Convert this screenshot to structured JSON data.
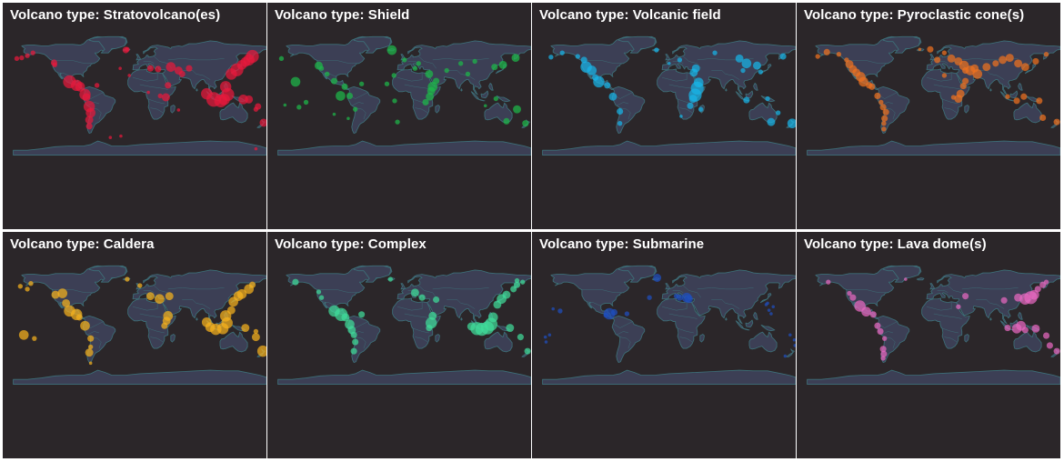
{
  "title_prefix": "Volcano type:",
  "panels": [
    {
      "type": "Stratovolcano(es)",
      "color": "#e8193c",
      "markers": [
        [
          -122,
          46,
          4
        ],
        [
          -121,
          43,
          3
        ],
        [
          -152,
          60,
          3
        ],
        [
          -160,
          56,
          3
        ],
        [
          -175,
          52,
          3
        ],
        [
          -168,
          53,
          3
        ],
        [
          -100,
          19,
          8
        ],
        [
          -90,
          14,
          7
        ],
        [
          -85,
          12,
          6
        ],
        [
          -78,
          1,
          7
        ],
        [
          -76,
          -3,
          5
        ],
        [
          -72,
          -16,
          7
        ],
        [
          -70,
          -25,
          6
        ],
        [
          -72,
          -35,
          5
        ],
        [
          -72,
          -44,
          4
        ],
        [
          -61,
          14,
          3
        ],
        [
          -20,
          64,
          4
        ],
        [
          -18,
          65,
          3
        ],
        [
          15,
          38,
          4
        ],
        [
          26,
          37,
          4
        ],
        [
          37,
          -3,
          5
        ],
        [
          40,
          14,
          4
        ],
        [
          29,
          -1,
          3
        ],
        [
          44,
          40,
          6
        ],
        [
          55,
          35,
          5
        ],
        [
          60,
          30,
          4
        ],
        [
          70,
          38,
          4
        ],
        [
          95,
          2,
          7
        ],
        [
          105,
          -6,
          9
        ],
        [
          115,
          -8,
          8
        ],
        [
          120,
          -6,
          7
        ],
        [
          125,
          1,
          8
        ],
        [
          122,
          12,
          7
        ],
        [
          130,
          30,
          7
        ],
        [
          138,
          36,
          8
        ],
        [
          145,
          43,
          6
        ],
        [
          155,
          50,
          7
        ],
        [
          160,
          55,
          8
        ],
        [
          150,
          47,
          6
        ],
        [
          147,
          -6,
          6
        ],
        [
          155,
          -6,
          5
        ],
        [
          168,
          -16,
          4
        ],
        [
          176,
          -39,
          5
        ],
        [
          165,
          -20,
          3
        ],
        [
          -28,
          38,
          2
        ],
        [
          -15,
          28,
          2
        ],
        [
          12,
          4,
          2
        ],
        [
          -42,
          -60,
          2
        ],
        [
          -27,
          -58,
          2
        ],
        [
          165,
          -76,
          2
        ],
        [
          55,
          -21,
          2
        ]
      ]
    },
    {
      "type": "Shield",
      "color": "#1db84a",
      "markers": [
        [
          -155,
          19,
          6
        ],
        [
          -122,
          42,
          5
        ],
        [
          -118,
          38,
          3
        ],
        [
          -91,
          -1,
          6
        ],
        [
          -110,
          30,
          3
        ],
        [
          -100,
          20,
          4
        ],
        [
          -85,
          12,
          4
        ],
        [
          -78,
          -1,
          4
        ],
        [
          -70,
          -20,
          3
        ],
        [
          -18,
          64,
          6
        ],
        [
          -15,
          28,
          3
        ],
        [
          0,
          50,
          3
        ],
        [
          -25,
          16,
          3
        ],
        [
          -14,
          -8,
          3
        ],
        [
          -10,
          -38,
          3
        ],
        [
          -61,
          16,
          3
        ],
        [
          15,
          38,
          3
        ],
        [
          20,
          45,
          3
        ],
        [
          35,
          30,
          5
        ],
        [
          40,
          12,
          6
        ],
        [
          38,
          6,
          5
        ],
        [
          36,
          -2,
          5
        ],
        [
          30,
          -10,
          4
        ],
        [
          45,
          20,
          4
        ],
        [
          60,
          35,
          3
        ],
        [
          80,
          45,
          3
        ],
        [
          100,
          48,
          3
        ],
        [
          90,
          30,
          3
        ],
        [
          128,
          40,
          4
        ],
        [
          140,
          43,
          5
        ],
        [
          158,
          53,
          5
        ],
        [
          -175,
          52,
          3
        ],
        [
          172,
          -40,
          4
        ],
        [
          145,
          -37,
          4
        ],
        [
          160,
          -20,
          5
        ],
        [
          130,
          -5,
          3
        ],
        [
          -140,
          -10,
          3
        ],
        [
          -150,
          -17,
          3
        ],
        [
          -80,
          -33,
          2
        ],
        [
          -100,
          -27,
          2
        ],
        [
          -170,
          -14,
          2
        ],
        [
          115,
          -15,
          2
        ]
      ]
    },
    {
      "type": "Volcanic field",
      "color": "#18b4e8",
      "markers": [
        [
          -152,
          60,
          3
        ],
        [
          -168,
          54,
          3
        ],
        [
          -130,
          55,
          3
        ],
        [
          -121,
          50,
          4
        ],
        [
          -118,
          40,
          7
        ],
        [
          -110,
          35,
          6
        ],
        [
          -105,
          25,
          4
        ],
        [
          -100,
          19,
          7
        ],
        [
          -88,
          14,
          4
        ],
        [
          -80,
          -2,
          5
        ],
        [
          -70,
          -23,
          4
        ],
        [
          -70,
          -40,
          3
        ],
        [
          -18,
          64,
          3
        ],
        [
          0,
          45,
          2
        ],
        [
          15,
          50,
          3
        ],
        [
          35,
          32,
          5
        ],
        [
          38,
          38,
          5
        ],
        [
          42,
          18,
          6
        ],
        [
          40,
          10,
          8
        ],
        [
          37,
          0,
          8
        ],
        [
          34,
          -5,
          5
        ],
        [
          30,
          -15,
          4
        ],
        [
          45,
          -20,
          3
        ],
        [
          65,
          60,
          3
        ],
        [
          100,
          52,
          5
        ],
        [
          110,
          45,
          6
        ],
        [
          105,
          35,
          3
        ],
        [
          125,
          42,
          5
        ],
        [
          130,
          33,
          3
        ],
        [
          145,
          -38,
          5
        ],
        [
          162,
          55,
          4
        ],
        [
          110,
          -7,
          4
        ],
        [
          140,
          -5,
          3
        ],
        [
          175,
          -40,
          6
        ],
        [
          155,
          -25,
          3
        ],
        [
          17,
          -30,
          2
        ]
      ]
    },
    {
      "type": "Pyroclastic cone(s)",
      "color": "#ee7220",
      "markers": [
        [
          -152,
          61,
          4
        ],
        [
          -165,
          55,
          3
        ],
        [
          -135,
          58,
          3
        ],
        [
          -124,
          50,
          3
        ],
        [
          -120,
          44,
          5
        ],
        [
          -115,
          37,
          5
        ],
        [
          -110,
          32,
          5
        ],
        [
          -104,
          26,
          6
        ],
        [
          -100,
          19,
          6
        ],
        [
          -92,
          14,
          4
        ],
        [
          -88,
          12,
          4
        ],
        [
          -80,
          -1,
          4
        ],
        [
          -75,
          -10,
          3
        ],
        [
          -72,
          -17,
          4
        ],
        [
          -68,
          -24,
          4
        ],
        [
          -70,
          -33,
          4
        ],
        [
          -71,
          -40,
          3
        ],
        [
          -71,
          -48,
          3
        ],
        [
          -20,
          65,
          2
        ],
        [
          -5,
          65,
          4
        ],
        [
          15,
          60,
          3
        ],
        [
          5,
          50,
          4
        ],
        [
          25,
          52,
          5
        ],
        [
          35,
          48,
          5
        ],
        [
          43,
          42,
          6
        ],
        [
          52,
          35,
          6
        ],
        [
          58,
          38,
          5
        ],
        [
          62,
          30,
          6
        ],
        [
          75,
          40,
          5
        ],
        [
          88,
          45,
          4
        ],
        [
          98,
          50,
          5
        ],
        [
          108,
          53,
          5
        ],
        [
          120,
          45,
          5
        ],
        [
          130,
          40,
          5
        ],
        [
          145,
          48,
          4
        ],
        [
          160,
          58,
          3
        ],
        [
          42,
          13,
          4
        ],
        [
          45,
          20,
          4
        ],
        [
          38,
          2,
          5
        ],
        [
          35,
          -5,
          5
        ],
        [
          28,
          -3,
          3
        ],
        [
          105,
          -2,
          3
        ],
        [
          118,
          -8,
          4
        ],
        [
          128,
          -2,
          4
        ],
        [
          150,
          -8,
          4
        ],
        [
          155,
          -32,
          4
        ],
        [
          175,
          -38,
          4
        ],
        [
          45,
          35,
          4
        ],
        [
          15,
          28,
          3
        ]
      ]
    },
    {
      "type": "Caldera",
      "color": "#f5b21d",
      "markers": [
        [
          -170,
          54,
          3
        ],
        [
          -155,
          58,
          3
        ],
        [
          -160,
          50,
          3
        ],
        [
          -120,
          42,
          5
        ],
        [
          -110,
          44,
          6
        ],
        [
          -105,
          30,
          5
        ],
        [
          -100,
          19,
          7
        ],
        [
          -90,
          14,
          7
        ],
        [
          -86,
          10,
          4
        ],
        [
          -78,
          -2,
          6
        ],
        [
          -70,
          -20,
          4
        ],
        [
          -70,
          -32,
          3
        ],
        [
          -72,
          -40,
          5
        ],
        [
          -165,
          -15,
          6
        ],
        [
          -150,
          -20,
          3
        ],
        [
          -18,
          64,
          3
        ],
        [
          0,
          55,
          3
        ],
        [
          15,
          40,
          5
        ],
        [
          28,
          36,
          6
        ],
        [
          42,
          40,
          5
        ],
        [
          40,
          12,
          6
        ],
        [
          38,
          5,
          5
        ],
        [
          35,
          -2,
          4
        ],
        [
          95,
          3,
          6
        ],
        [
          100,
          -4,
          6
        ],
        [
          108,
          -7,
          7
        ],
        [
          118,
          -6,
          7
        ],
        [
          124,
          2,
          7
        ],
        [
          122,
          12,
          7
        ],
        [
          130,
          20,
          5
        ],
        [
          133,
          32,
          6
        ],
        [
          140,
          40,
          6
        ],
        [
          145,
          43,
          6
        ],
        [
          155,
          50,
          6
        ],
        [
          160,
          56,
          4
        ],
        [
          150,
          -5,
          5
        ],
        [
          165,
          -18,
          5
        ],
        [
          175,
          -38,
          7
        ],
        [
          165,
          -10,
          3
        ],
        [
          -70,
          -55,
          2
        ]
      ]
    },
    {
      "type": "Complex",
      "color": "#40dc9a",
      "markers": [
        [
          -155,
          60,
          4
        ],
        [
          -122,
          46,
          3
        ],
        [
          -118,
          38,
          3
        ],
        [
          -100,
          19,
          7
        ],
        [
          -90,
          14,
          8
        ],
        [
          -84,
          10,
          5
        ],
        [
          -78,
          0,
          6
        ],
        [
          -75,
          -8,
          5
        ],
        [
          -72,
          -15,
          4
        ],
        [
          -70,
          -25,
          4
        ],
        [
          -72,
          -38,
          4
        ],
        [
          -61,
          14,
          4
        ],
        [
          -20,
          64,
          3
        ],
        [
          15,
          45,
          5
        ],
        [
          25,
          38,
          4
        ],
        [
          45,
          35,
          4
        ],
        [
          40,
          12,
          5
        ],
        [
          38,
          2,
          7
        ],
        [
          35,
          -5,
          4
        ],
        [
          95,
          -3,
          5
        ],
        [
          103,
          -6,
          8
        ],
        [
          110,
          -7,
          8
        ],
        [
          118,
          -5,
          8
        ],
        [
          123,
          0,
          8
        ],
        [
          126,
          10,
          6
        ],
        [
          132,
          28,
          5
        ],
        [
          138,
          36,
          6
        ],
        [
          145,
          42,
          5
        ],
        [
          155,
          50,
          4
        ],
        [
          160,
          56,
          4
        ],
        [
          150,
          -5,
          5
        ],
        [
          165,
          -18,
          4
        ],
        [
          175,
          -38,
          4
        ],
        [
          160,
          62,
          3
        ],
        [
          168,
          60,
          3
        ]
      ]
    },
    {
      "type": "Submarine",
      "color": "#1f4fbf",
      "markers": [
        [
          -17,
          66,
          5
        ],
        [
          -28,
          38,
          3
        ],
        [
          10,
          40,
          3
        ],
        [
          15,
          38,
          4
        ],
        [
          25,
          38,
          6
        ],
        [
          28,
          36,
          5
        ],
        [
          -90,
          13,
          3
        ],
        [
          -85,
          15,
          7
        ],
        [
          -78,
          17,
          4
        ],
        [
          -60,
          15,
          3
        ],
        [
          -155,
          19,
          3
        ],
        [
          -165,
          22,
          2
        ],
        [
          -170,
          -15,
          2
        ],
        [
          -176,
          -18,
          2
        ],
        [
          140,
          30,
          2
        ],
        [
          142,
          20,
          2
        ],
        [
          145,
          15,
          2
        ],
        [
          148,
          25,
          2
        ],
        [
          138,
          28,
          2
        ],
        [
          178,
          -22,
          2
        ],
        [
          179,
          -30,
          2
        ],
        [
          172,
          -15,
          2
        ],
        [
          165,
          -45,
          2
        ],
        [
          -175,
          -25,
          2
        ]
      ]
    },
    {
      "type": "Lava dome(s)",
      "color": "#e868c0",
      "markers": [
        [
          -150,
          60,
          3
        ],
        [
          -120,
          44,
          3
        ],
        [
          -115,
          38,
          4
        ],
        [
          -105,
          26,
          7
        ],
        [
          -96,
          18,
          6
        ],
        [
          -86,
          14,
          4
        ],
        [
          -80,
          -2,
          4
        ],
        [
          -76,
          -10,
          4
        ],
        [
          -70,
          -20,
          3
        ],
        [
          -72,
          -35,
          4
        ],
        [
          -71,
          -42,
          4
        ],
        [
          -72,
          -48,
          3
        ],
        [
          -40,
          64,
          2
        ],
        [
          45,
          40,
          4
        ],
        [
          35,
          25,
          3
        ],
        [
          100,
          34,
          4
        ],
        [
          120,
          38,
          5
        ],
        [
          130,
          36,
          7
        ],
        [
          138,
          38,
          8
        ],
        [
          143,
          42,
          6
        ],
        [
          148,
          50,
          4
        ],
        [
          155,
          56,
          4
        ],
        [
          160,
          60,
          3
        ],
        [
          105,
          -5,
          4
        ],
        [
          118,
          -6,
          6
        ],
        [
          124,
          -2,
          6
        ],
        [
          130,
          -8,
          4
        ],
        [
          145,
          -6,
          5
        ],
        [
          160,
          -16,
          4
        ],
        [
          165,
          -30,
          4
        ],
        [
          175,
          -38,
          4
        ]
      ]
    }
  ]
}
